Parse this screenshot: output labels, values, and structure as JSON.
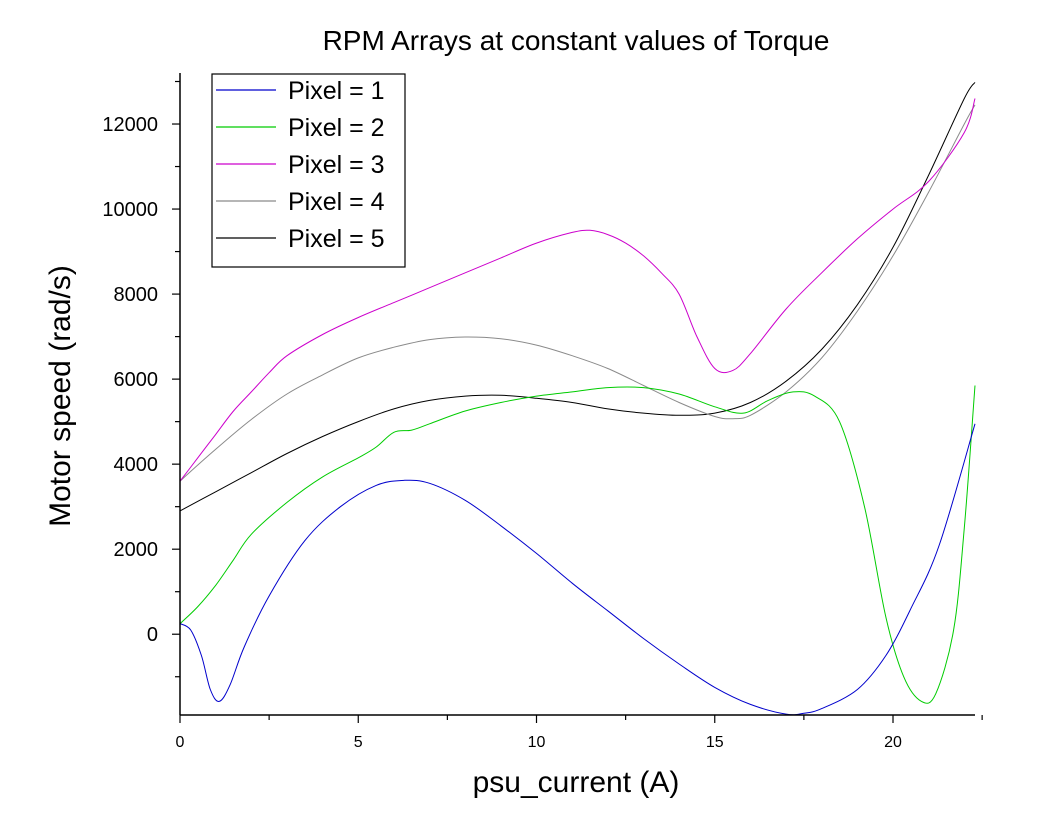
{
  "chart_data": {
    "type": "line",
    "title": "RPM Arrays at constant values of Torque",
    "xlabel": "psu_current (A)",
    "ylabel": "Motor speed (rad/s)",
    "xlim": [
      0,
      22.3
    ],
    "ylim": [
      -1900,
      13200
    ],
    "xticks": [
      0,
      5,
      10,
      15,
      20
    ],
    "yticks": [
      0,
      2000,
      4000,
      6000,
      8000,
      10000,
      12000
    ],
    "grid": false,
    "legend_position": "top-left",
    "series": [
      {
        "name": "Pixel = 1",
        "color": "#0000cc",
        "points": [
          [
            0,
            250
          ],
          [
            0.3,
            100
          ],
          [
            0.6,
            -500
          ],
          [
            0.85,
            -1300
          ],
          [
            1.1,
            -1580
          ],
          [
            1.4,
            -1200
          ],
          [
            1.8,
            -300
          ],
          [
            2.5,
            900
          ],
          [
            3.5,
            2200
          ],
          [
            4.5,
            3000
          ],
          [
            5.5,
            3500
          ],
          [
            6.3,
            3620
          ],
          [
            7,
            3550
          ],
          [
            8,
            3150
          ],
          [
            9,
            2550
          ],
          [
            10,
            1900
          ],
          [
            11,
            1200
          ],
          [
            12,
            550
          ],
          [
            13,
            -100
          ],
          [
            14,
            -700
          ],
          [
            15,
            -1250
          ],
          [
            16,
            -1650
          ],
          [
            17,
            -1880
          ],
          [
            17.5,
            -1860
          ],
          [
            18,
            -1750
          ],
          [
            19,
            -1300
          ],
          [
            19.8,
            -500
          ],
          [
            20.5,
            600
          ],
          [
            21.3,
            2100
          ],
          [
            22.3,
            4950
          ]
        ]
      },
      {
        "name": "Pixel = 2",
        "color": "#00cc00",
        "points": [
          [
            0,
            250
          ],
          [
            0.5,
            650
          ],
          [
            1,
            1150
          ],
          [
            1.5,
            1750
          ],
          [
            2,
            2350
          ],
          [
            3,
            3100
          ],
          [
            4,
            3700
          ],
          [
            5,
            4150
          ],
          [
            5.5,
            4400
          ],
          [
            6,
            4750
          ],
          [
            6.5,
            4800
          ],
          [
            7,
            4950
          ],
          [
            8,
            5250
          ],
          [
            9,
            5450
          ],
          [
            10,
            5600
          ],
          [
            11,
            5700
          ],
          [
            12,
            5800
          ],
          [
            13,
            5800
          ],
          [
            14,
            5650
          ],
          [
            15,
            5350
          ],
          [
            15.8,
            5200
          ],
          [
            16.5,
            5500
          ],
          [
            17.2,
            5700
          ],
          [
            17.8,
            5600
          ],
          [
            18.5,
            5000
          ],
          [
            19.2,
            3000
          ],
          [
            19.8,
            400
          ],
          [
            20.3,
            -1000
          ],
          [
            20.8,
            -1580
          ],
          [
            21.2,
            -1400
          ],
          [
            21.7,
            100
          ],
          [
            22,
            2500
          ],
          [
            22.3,
            5850
          ]
        ]
      },
      {
        "name": "Pixel = 3",
        "color": "#cc00cc",
        "points": [
          [
            0,
            3600
          ],
          [
            0.5,
            4150
          ],
          [
            1,
            4700
          ],
          [
            1.5,
            5250
          ],
          [
            2,
            5700
          ],
          [
            2.5,
            6150
          ],
          [
            3,
            6550
          ],
          [
            4,
            7050
          ],
          [
            5,
            7450
          ],
          [
            6,
            7800
          ],
          [
            7,
            8150
          ],
          [
            8,
            8500
          ],
          [
            9,
            8850
          ],
          [
            10,
            9200
          ],
          [
            11,
            9450
          ],
          [
            11.5,
            9500
          ],
          [
            12,
            9400
          ],
          [
            12.5,
            9200
          ],
          [
            13,
            8900
          ],
          [
            13.5,
            8500
          ],
          [
            14,
            8000
          ],
          [
            14.5,
            7000
          ],
          [
            15,
            6250
          ],
          [
            15.5,
            6200
          ],
          [
            16,
            6600
          ],
          [
            17,
            7650
          ],
          [
            18,
            8500
          ],
          [
            19,
            9300
          ],
          [
            20,
            10000
          ],
          [
            21,
            10650
          ],
          [
            22,
            11800
          ],
          [
            22.3,
            12600
          ]
        ]
      },
      {
        "name": "Pixel = 4",
        "color": "#8a8a8a",
        "points": [
          [
            0,
            3600
          ],
          [
            1,
            4350
          ],
          [
            2,
            5050
          ],
          [
            3,
            5650
          ],
          [
            4,
            6100
          ],
          [
            5,
            6500
          ],
          [
            6,
            6750
          ],
          [
            7,
            6930
          ],
          [
            8,
            6990
          ],
          [
            9,
            6950
          ],
          [
            10,
            6800
          ],
          [
            11,
            6550
          ],
          [
            12,
            6250
          ],
          [
            13,
            5850
          ],
          [
            14,
            5450
          ],
          [
            15,
            5120
          ],
          [
            15.5,
            5070
          ],
          [
            16,
            5150
          ],
          [
            17,
            5700
          ],
          [
            18,
            6500
          ],
          [
            19,
            7600
          ],
          [
            20,
            8900
          ],
          [
            21,
            10400
          ],
          [
            22,
            12000
          ],
          [
            22.3,
            12450
          ]
        ]
      },
      {
        "name": "Pixel = 5",
        "color": "#000000",
        "points": [
          [
            0,
            2900
          ],
          [
            1,
            3350
          ],
          [
            2,
            3800
          ],
          [
            3,
            4250
          ],
          [
            4,
            4650
          ],
          [
            5,
            5000
          ],
          [
            6,
            5300
          ],
          [
            7,
            5500
          ],
          [
            8,
            5600
          ],
          [
            9,
            5620
          ],
          [
            10,
            5550
          ],
          [
            11,
            5450
          ],
          [
            12,
            5300
          ],
          [
            13,
            5200
          ],
          [
            14,
            5150
          ],
          [
            15,
            5200
          ],
          [
            16,
            5450
          ],
          [
            17,
            5950
          ],
          [
            18,
            6700
          ],
          [
            19,
            7750
          ],
          [
            20,
            9100
          ],
          [
            21,
            10800
          ],
          [
            22,
            12600
          ],
          [
            22.3,
            12980
          ]
        ]
      }
    ]
  }
}
